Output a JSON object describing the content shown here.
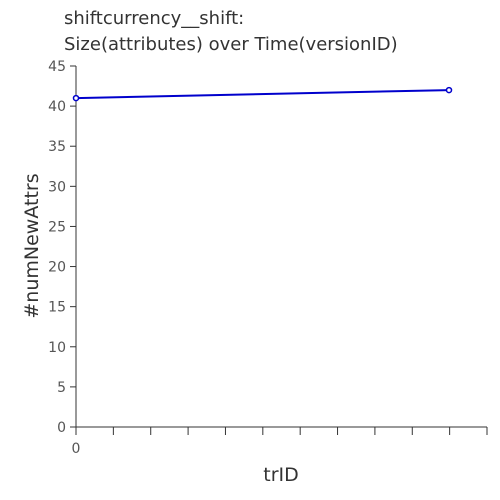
{
  "chart_data": {
    "type": "line",
    "title_lines": [
      "shiftcurrency__shift:",
      "Size(attributes) over Time(versionID)"
    ],
    "xlabel": "trID",
    "ylabel": "#numNewAttrs",
    "x_tick_labels": [
      "0"
    ],
    "y_ticks": [
      0,
      5,
      10,
      15,
      20,
      25,
      30,
      35,
      40,
      45
    ],
    "ylim": [
      0,
      45
    ],
    "grid": false,
    "series": [
      {
        "color": "#0000cc",
        "points": [
          {
            "y": 41
          },
          {
            "y": 42
          }
        ]
      }
    ]
  }
}
